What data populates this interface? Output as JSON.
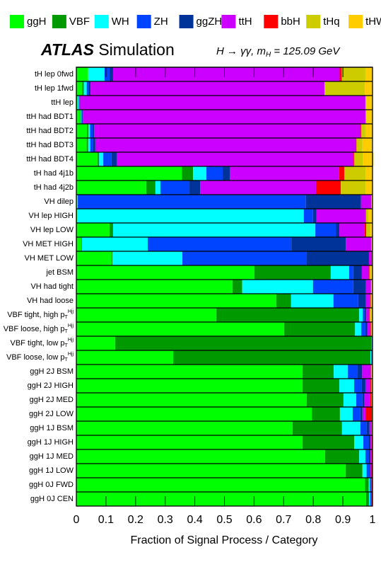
{
  "chart_data": {
    "type": "stacked-barh",
    "title": "ATLAS Simulation",
    "subtitle": "H → γγ, mH = 125.09 GeV",
    "x_label": "Fraction of Signal Process / Category",
    "xlim": [
      0,
      1
    ],
    "xticks": [
      0,
      0.1,
      0.2,
      0.3,
      0.4,
      0.5,
      0.6,
      0.7,
      0.8,
      0.9,
      1
    ],
    "categories": [
      "tH lep 0fwd",
      "tH lep 1fwd",
      "ttH lep",
      "ttH had BDT1",
      "ttH had BDT2",
      "ttH had BDT3",
      "ttH had BDT4",
      "tH had 4j1b",
      "tH had 4j2b",
      "VH dilep",
      "VH lep HIGH",
      "VH lep LOW",
      "VH MET HIGH",
      "VH MET LOW",
      "jet BSM",
      "VH had tight",
      "VH had loose",
      "VBF tight, high pTHjj",
      "VBF loose, high pTHjj",
      "VBF tight, low pTHjj",
      "VBF loose, low pTHjj",
      "ggH 2J BSM",
      "ggH 2J HIGH",
      "ggH 2J MED",
      "ggH 2J LOW",
      "ggH 1J BSM",
      "ggH 1J HIGH",
      "ggH 1J MED",
      "ggH 1J LOW",
      "ggH 0J FWD",
      "ggH 0J CEN"
    ],
    "series": [
      {
        "name": "ggH",
        "color": "#00ff00",
        "values": [
          0.04,
          0.02,
          0.005,
          0.012,
          0.036,
          0.035,
          0.072,
          0.356,
          0.236,
          0.002,
          0.003,
          0.112,
          0.017,
          0.119,
          0.601,
          0.527,
          0.675,
          0.473,
          0.702,
          0.131,
          0.327,
          0.764,
          0.764,
          0.778,
          0.795,
          0.73,
          0.764,
          0.84,
          0.909,
          0.975,
          0.978
        ]
      },
      {
        "name": "VBF",
        "color": "#009900",
        "values": [
          0,
          0.005,
          0,
          0.003,
          0.005,
          0.005,
          0.005,
          0.038,
          0.031,
          0,
          0,
          0.012,
          0.002,
          0.003,
          0.258,
          0.033,
          0.05,
          0.482,
          0.239,
          0.866,
          0.666,
          0.105,
          0.124,
          0.124,
          0.095,
          0.167,
          0.174,
          0.115,
          0.057,
          0.012,
          0.01
        ]
      },
      {
        "name": "WH",
        "color": "#00ffff",
        "values": [
          0.055,
          0.01,
          0.003,
          0.002,
          0.005,
          0.007,
          0.014,
          0.045,
          0.017,
          0.003,
          0.765,
          0.683,
          0.222,
          0.236,
          0.062,
          0.239,
          0.143,
          0.012,
          0.021,
          0.001,
          0.003,
          0.048,
          0.05,
          0.043,
          0.043,
          0.062,
          0.031,
          0.021,
          0.014,
          0.004,
          0.004
        ]
      },
      {
        "name": "ZH",
        "color": "#0044ff",
        "values": [
          0.017,
          0.008,
          0.002,
          0.003,
          0.01,
          0.01,
          0.028,
          0.055,
          0.098,
          0.77,
          0.031,
          0.069,
          0.485,
          0.418,
          0.014,
          0.136,
          0.084,
          0.007,
          0.014,
          0.001,
          0.002,
          0.031,
          0.026,
          0.021,
          0.026,
          0.021,
          0.017,
          0.012,
          0.01,
          0.003,
          0.003
        ]
      },
      {
        "name": "ggZH",
        "color": "#003399",
        "values": [
          0.012,
          0.005,
          0.001,
          0.002,
          0.004,
          0.007,
          0.017,
          0.024,
          0.036,
          0.186,
          0.012,
          0.012,
          0.184,
          0.212,
          0.029,
          0.043,
          0.026,
          0.005,
          0.007,
          0,
          0.001,
          0.017,
          0.012,
          0.007,
          0.007,
          0.01,
          0.007,
          0.005,
          0.003,
          0.001,
          0.001
        ]
      },
      {
        "name": "ttH",
        "color": "#cc00ff",
        "values": [
          0.765,
          0.79,
          0.965,
          0.955,
          0.9,
          0.88,
          0.8,
          0.368,
          0.391,
          0.035,
          0.165,
          0.084,
          0.086,
          0.01,
          0.024,
          0.017,
          0.014,
          0.01,
          0.01,
          0.001,
          0.001,
          0.029,
          0.017,
          0.019,
          0.01,
          0.006,
          0.004,
          0.003,
          0.002,
          0.001,
          0
        ]
      },
      {
        "name": "bbH",
        "color": "#ff0000",
        "values": [
          0.007,
          0,
          0,
          0,
          0.002,
          0.002,
          0.002,
          0.019,
          0.084,
          0,
          0.002,
          0.007,
          0,
          0,
          0.002,
          0,
          0.002,
          0.002,
          0.002,
          0,
          0,
          0.001,
          0.003,
          0.005,
          0.022,
          0.002,
          0.002,
          0.003,
          0.004,
          0.004,
          0.004
        ]
      },
      {
        "name": "tHq",
        "color": "#cccc00",
        "values": [
          0.08,
          0.136,
          0.004,
          0.003,
          0.014,
          0.02,
          0.03,
          0.072,
          0.084,
          0,
          0.008,
          0.014,
          0.002,
          0.001,
          0.004,
          0.002,
          0.002,
          0.003,
          0.002,
          0,
          0,
          0.002,
          0.002,
          0.001,
          0.001,
          0.001,
          0,
          0,
          0,
          0,
          0
        ]
      },
      {
        "name": "tHW",
        "color": "#ffcc00",
        "values": [
          0.024,
          0.026,
          0.02,
          0.02,
          0.024,
          0.032,
          0.035,
          0.024,
          0.024,
          0.004,
          0.014,
          0.007,
          0.002,
          0.001,
          0.006,
          0.003,
          0.004,
          0.006,
          0.003,
          0,
          0,
          0.003,
          0.002,
          0.002,
          0.001,
          0.001,
          0.001,
          0.001,
          0.001,
          0,
          0
        ]
      }
    ]
  }
}
